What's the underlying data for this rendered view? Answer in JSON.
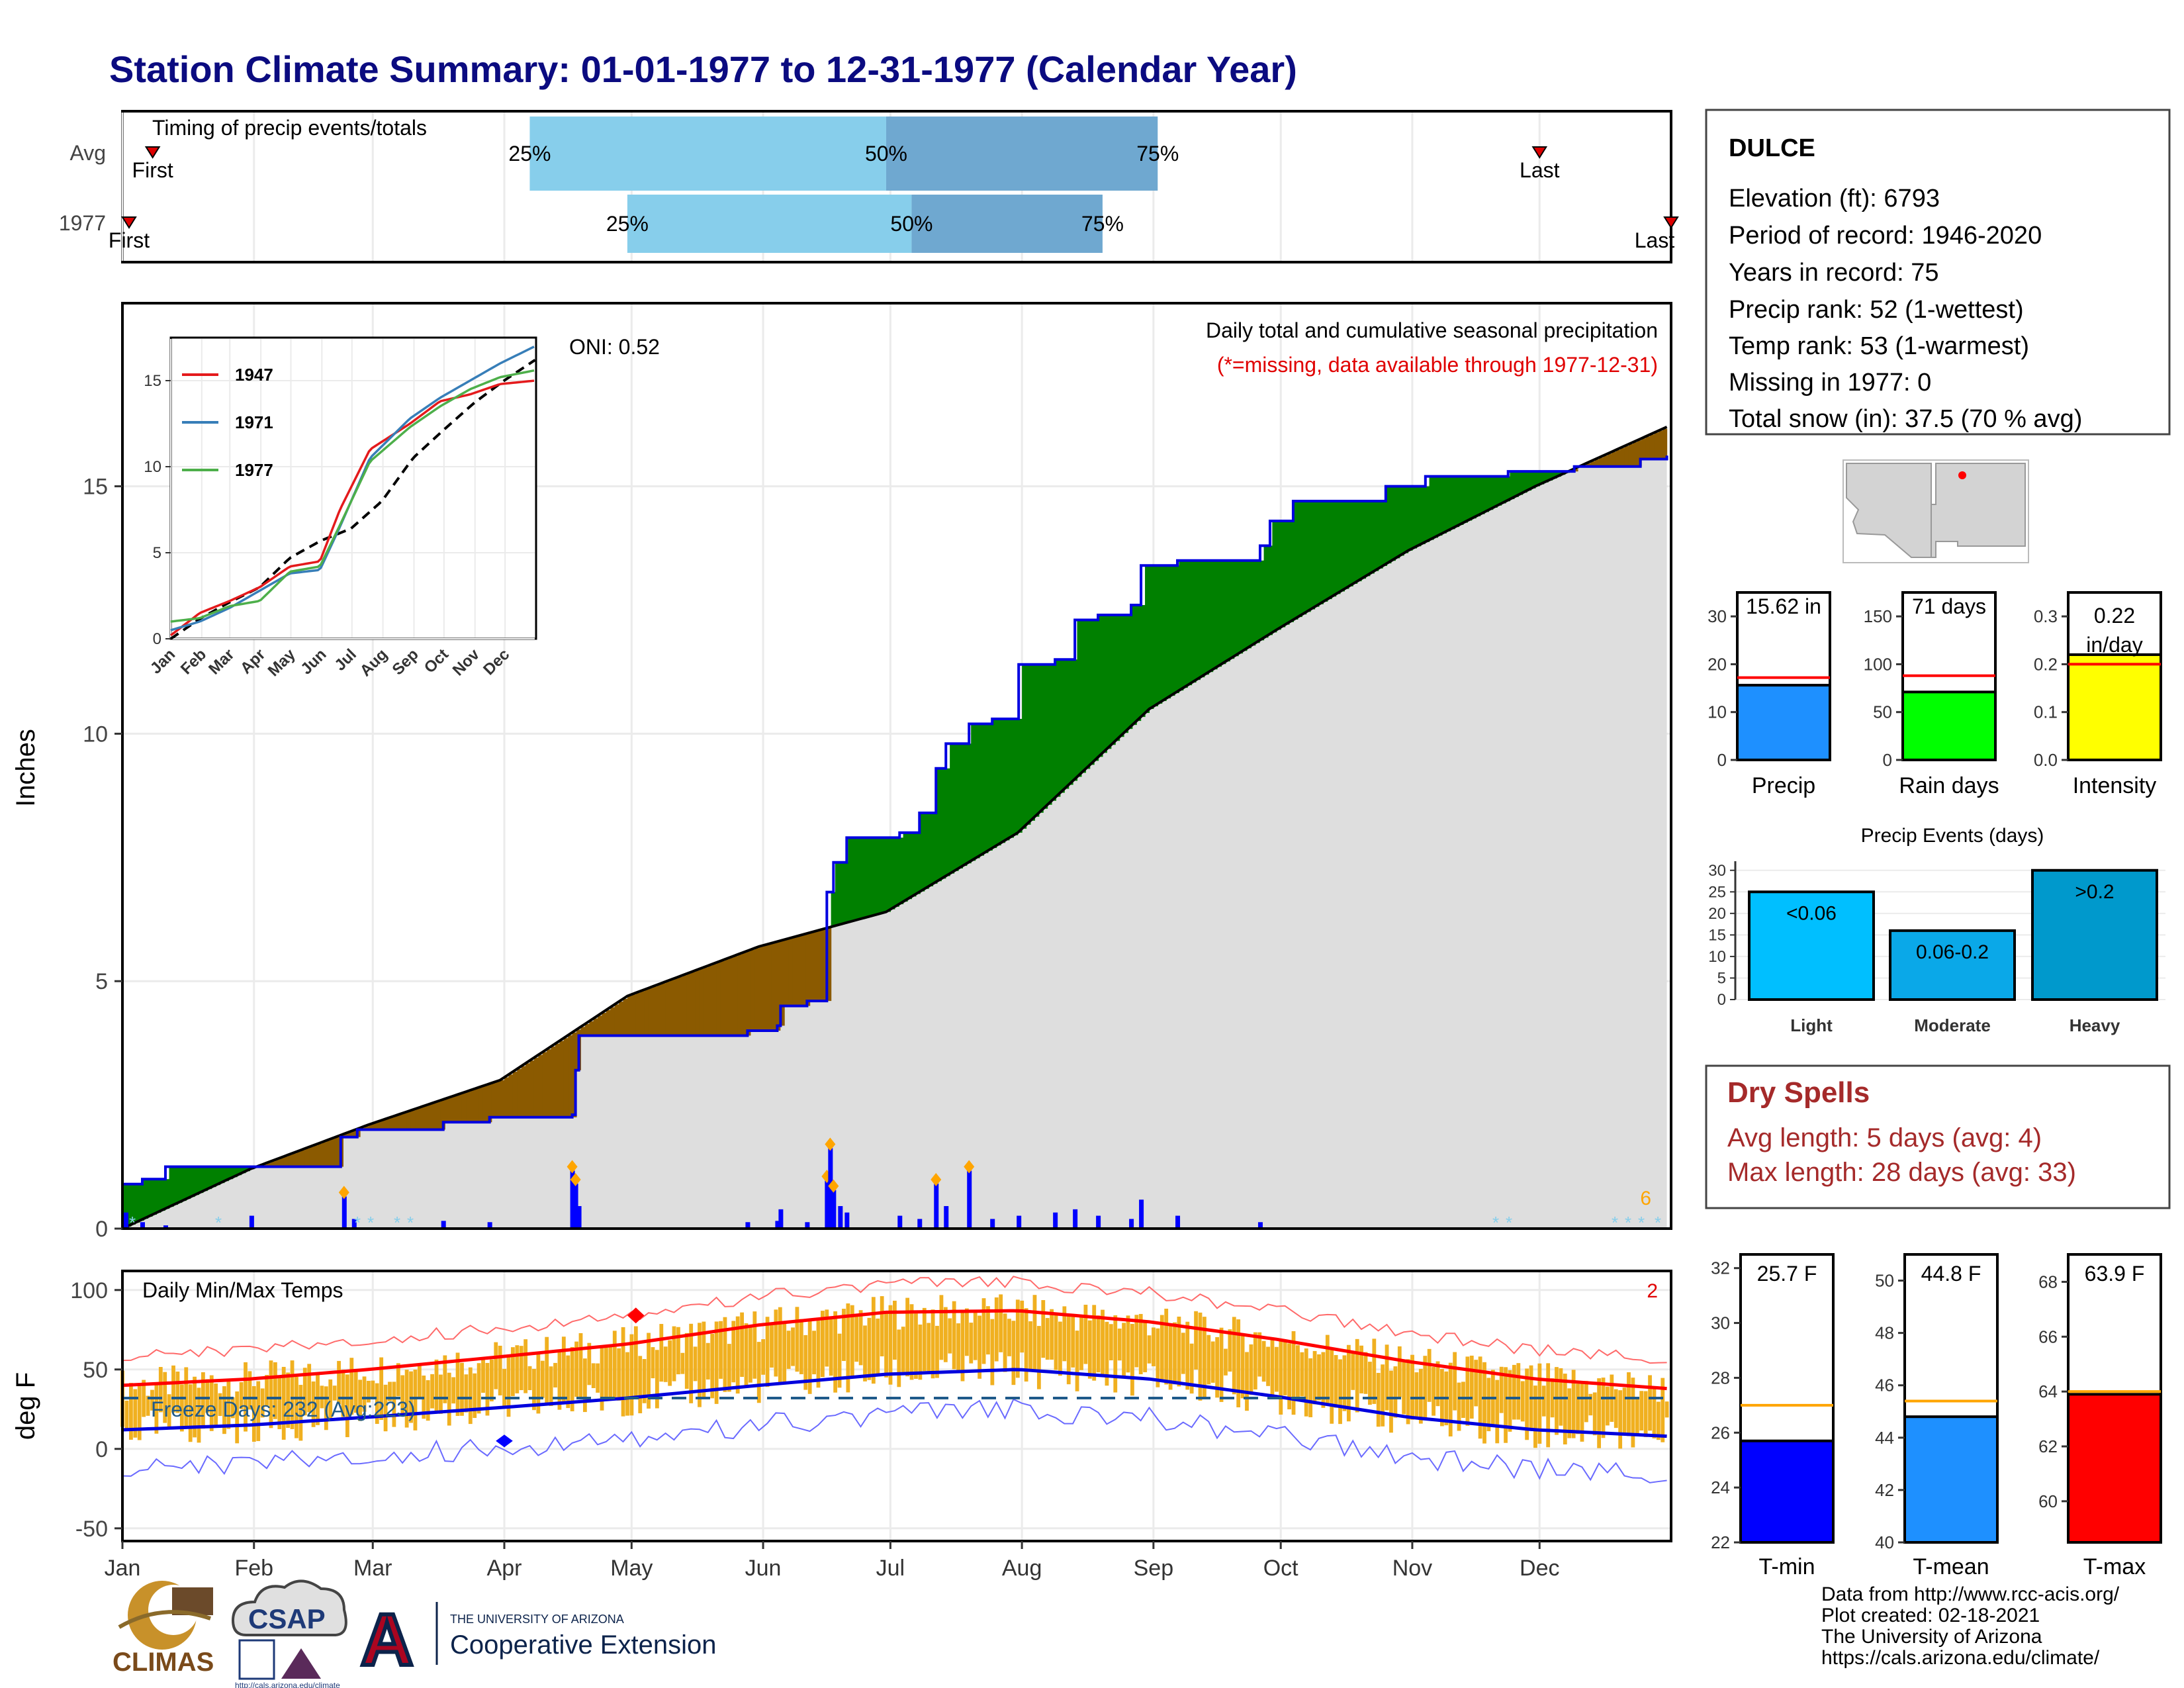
{
  "title": "Station Climate Summary: 01-01-1977 to 12-31-1977 (Calendar Year)",
  "timing": {
    "label": "Timing of precip events/totals",
    "rows": [
      {
        "name": "Avg",
        "first_label": "First",
        "last_label": "Last",
        "q25": "25%",
        "q50": "50%",
        "q75": "75%",
        "q25_day": 97,
        "q50_day": 181,
        "q75_day": 245,
        "first_day": 5,
        "last_day": 335
      },
      {
        "name": "1977",
        "first_label": "First",
        "last_label": "Last",
        "q25": "25%",
        "q50": "50%",
        "q75": "75%",
        "q25_day": 120,
        "q50_day": 187,
        "q75_day": 232,
        "first_day": 1,
        "last_day": 366
      }
    ]
  },
  "precip_panel": {
    "ylabel": "Inches",
    "label": "Daily total and cumulative seasonal precipitation",
    "missing_note": "(*=missing, data available through 1977-12-31)",
    "oni": "ONI: 0.52",
    "count_note": "6",
    "yticks": [
      "0",
      "5",
      "10",
      "15"
    ]
  },
  "temp_panel": {
    "ylabel": "deg F",
    "label": "Daily Min/Max Temps",
    "count_note": "2",
    "freeze": "Freeze Days: 232 (Avg:223)",
    "yticks": [
      "-50",
      "0",
      "50",
      "100"
    ]
  },
  "months": [
    "Jan",
    "Feb",
    "Mar",
    "Apr",
    "May",
    "Jun",
    "Jul",
    "Aug",
    "Sep",
    "Oct",
    "Nov",
    "Dec"
  ],
  "inset": {
    "legend": [
      "1947",
      "1971",
      "1977"
    ],
    "colors": [
      "#e41a1c",
      "#377eb8",
      "#4daf4a"
    ],
    "yticks": [
      "0",
      "5",
      "10",
      "15"
    ],
    "months": [
      "Jan",
      "Feb",
      "Mar",
      "Apr",
      "May",
      "Jun",
      "Jul",
      "Aug",
      "Sep",
      "Oct",
      "Nov",
      "Dec"
    ]
  },
  "station": {
    "name": "DULCE",
    "lines": [
      "Elevation (ft): 6793",
      "Period of record: 1946-2020",
      "Years in record: 75",
      "Precip rank: 52 (1-wettest)",
      "Temp rank: 53 (1-warmest)",
      "Missing in 1977: 0",
      "Total snow (in): 37.5 (70 % avg)"
    ]
  },
  "summary_bars": [
    {
      "label": "Precip",
      "value_label": "15.62 in",
      "value": 15.62,
      "avg": 17.2,
      "ymax": 35,
      "ticks": [
        "0",
        "10",
        "20",
        "30"
      ],
      "tickvals": [
        0,
        10,
        20,
        30
      ],
      "color": "#1e90ff"
    },
    {
      "label": "Rain days",
      "value_label": "71 days",
      "value": 71,
      "avg": 88,
      "ymax": 175,
      "ticks": [
        "0",
        "50",
        "100",
        "150"
      ],
      "tickvals": [
        0,
        50,
        100,
        150
      ],
      "color": "#00ff00"
    },
    {
      "label": "Intensity",
      "value_label": "0.22\nin/day",
      "value_line1": "0.22",
      "value_line2": "in/day",
      "value": 0.22,
      "avg": 0.2,
      "ymax": 0.35,
      "ticks": [
        "0.0",
        "0.1",
        "0.2",
        "0.3"
      ],
      "tickvals": [
        0,
        0.1,
        0.2,
        0.3
      ],
      "color": "#ffff00"
    }
  ],
  "events": {
    "title": "Precip Events (days)",
    "categories": [
      "Light",
      "Moderate",
      "Heavy"
    ],
    "labels": [
      "<0.06",
      "0.06-0.2",
      ">0.2"
    ],
    "values": [
      25,
      16,
      30
    ],
    "colors": [
      "#00bfff",
      "#0aa8e8",
      "#0099cc"
    ],
    "yticks": [
      "0",
      "5",
      "10",
      "15",
      "20",
      "25",
      "30"
    ]
  },
  "dry_spells": {
    "title": "Dry Spells",
    "lines": [
      "Avg length: 5 days (avg: 4)",
      "Max length: 28 days (avg: 33)"
    ]
  },
  "temp_bars": [
    {
      "label": "T-min",
      "value_label": "25.7 F",
      "value": 25.7,
      "avg": 27.0,
      "ymin": 22,
      "ymax": 32.5,
      "ticks": [
        "22",
        "24",
        "26",
        "28",
        "30",
        "32"
      ],
      "tickvals": [
        22,
        24,
        26,
        28,
        30,
        32
      ],
      "color": "#0000ff"
    },
    {
      "label": "T-mean",
      "value_label": "44.8 F",
      "value": 44.8,
      "avg": 45.4,
      "ymin": 40,
      "ymax": 51,
      "ticks": [
        "40",
        "42",
        "44",
        "46",
        "48",
        "50"
      ],
      "tickvals": [
        40,
        42,
        44,
        46,
        48,
        50
      ],
      "color": "#1e90ff"
    },
    {
      "label": "T-max",
      "value_label": "63.9 F",
      "value": 63.9,
      "avg": 64.0,
      "ymin": 58.5,
      "ymax": 69,
      "ticks": [
        "60",
        "62",
        "64",
        "66",
        "68"
      ],
      "tickvals": [
        60,
        62,
        64,
        66,
        68
      ],
      "color": "#ff0000"
    }
  ],
  "footer": {
    "lines": [
      "Data from http://www.rcc-acis.org/",
      "Plot created: 02-18-2021",
      "The University of Arizona",
      "https://cals.arizona.edu/climate/"
    ],
    "climas": "CLIMAS",
    "csap": "CSAP",
    "csap_url": "http://cals.arizona.edu/climate",
    "ua_small": "THE UNIVERSITY OF ARIZONA",
    "ua_big": "Cooperative Extension",
    "ua_letter": "A"
  },
  "chart_data": {
    "type": "area",
    "x_unit": "day of year 1977",
    "cumulative_1977_points": [
      [
        1,
        0.9
      ],
      [
        7,
        1.0
      ],
      [
        14,
        1.25
      ],
      [
        40,
        1.25
      ],
      [
        67,
        1.85
      ],
      [
        72,
        2.0
      ],
      [
        98,
        2.15
      ],
      [
        112,
        2.25
      ],
      [
        137,
        2.3
      ],
      [
        138,
        3.2
      ],
      [
        139,
        3.9
      ],
      [
        190,
        4.0
      ],
      [
        199,
        4.1
      ],
      [
        200,
        4.5
      ],
      [
        208,
        4.6
      ],
      [
        214,
        6.8
      ],
      [
        216,
        7.4
      ],
      [
        220,
        7.9
      ],
      [
        236,
        8.0
      ],
      [
        242,
        8.4
      ],
      [
        247,
        9.3
      ],
      [
        250,
        9.8
      ],
      [
        257,
        10.2
      ],
      [
        264,
        10.3
      ],
      [
        272,
        11.4
      ],
      [
        283,
        11.5
      ],
      [
        289,
        12.3
      ],
      [
        296,
        12.4
      ],
      [
        306,
        12.6
      ],
      [
        309,
        13.4
      ],
      [
        320,
        13.5
      ],
      [
        345,
        13.8
      ],
      [
        348,
        14.3
      ],
      [
        355,
        14.7
      ],
      [
        383,
        15.0
      ],
      [
        395,
        15.2
      ],
      [
        420,
        15.3
      ],
      [
        440,
        15.4
      ],
      [
        460,
        15.55
      ],
      [
        468,
        15.62
      ]
    ],
    "cumulative_avg_points": [
      [
        1,
        0.0
      ],
      [
        31,
        1.2
      ],
      [
        59,
        2.1
      ],
      [
        90,
        3.0
      ],
      [
        120,
        4.7
      ],
      [
        151,
        5.7
      ],
      [
        181,
        6.4
      ],
      [
        212,
        8.0
      ],
      [
        243,
        10.5
      ],
      [
        273,
        12.1
      ],
      [
        304,
        13.7
      ],
      [
        334,
        15.0
      ],
      [
        365,
        16.2
      ]
    ],
    "daily_points": [
      [
        2,
        0.25
      ],
      [
        7,
        0.1
      ],
      [
        14,
        0.05
      ],
      [
        40,
        0.2
      ],
      [
        68,
        0.5
      ],
      [
        71,
        0.15
      ],
      [
        98,
        0.12
      ],
      [
        112,
        0.1
      ],
      [
        137,
        0.9
      ],
      [
        138,
        0.7
      ],
      [
        139,
        0.35
      ],
      [
        190,
        0.1
      ],
      [
        199,
        0.12
      ],
      [
        200,
        0.3
      ],
      [
        208,
        0.1
      ],
      [
        214,
        0.75
      ],
      [
        215,
        1.25
      ],
      [
        216,
        0.6
      ],
      [
        218,
        0.35
      ],
      [
        220,
        0.25
      ],
      [
        236,
        0.2
      ],
      [
        242,
        0.15
      ],
      [
        247,
        0.7
      ],
      [
        250,
        0.35
      ],
      [
        257,
        0.9
      ],
      [
        264,
        0.15
      ],
      [
        272,
        0.2
      ],
      [
        283,
        0.25
      ],
      [
        289,
        0.3
      ],
      [
        296,
        0.2
      ],
      [
        306,
        0.15
      ],
      [
        309,
        0.45
      ],
      [
        320,
        0.2
      ],
      [
        345,
        0.1
      ]
    ],
    "temp_avg_max": [
      [
        1,
        40
      ],
      [
        31,
        44
      ],
      [
        59,
        50
      ],
      [
        90,
        58
      ],
      [
        120,
        66
      ],
      [
        151,
        78
      ],
      [
        181,
        86
      ],
      [
        212,
        87
      ],
      [
        243,
        80
      ],
      [
        273,
        69
      ],
      [
        304,
        55
      ],
      [
        334,
        44
      ],
      [
        365,
        38
      ]
    ],
    "temp_avg_min": [
      [
        1,
        12
      ],
      [
        31,
        15
      ],
      [
        59,
        20
      ],
      [
        90,
        26
      ],
      [
        120,
        32
      ],
      [
        151,
        40
      ],
      [
        181,
        47
      ],
      [
        212,
        50
      ],
      [
        243,
        44
      ],
      [
        273,
        33
      ],
      [
        304,
        20
      ],
      [
        334,
        12
      ],
      [
        365,
        8
      ]
    ],
    "freeze_line": 32,
    "inset_series": [
      {
        "name": "1947",
        "points": [
          [
            1,
            0.2
          ],
          [
            30,
            1.5
          ],
          [
            60,
            2.2
          ],
          [
            90,
            3.0
          ],
          [
            120,
            4.2
          ],
          [
            150,
            4.5
          ],
          [
            170,
            7.5
          ],
          [
            200,
            11.0
          ],
          [
            240,
            12.5
          ],
          [
            270,
            13.8
          ],
          [
            300,
            14.2
          ],
          [
            330,
            14.8
          ],
          [
            365,
            15.0
          ]
        ]
      },
      {
        "name": "1971",
        "points": [
          [
            1,
            0.5
          ],
          [
            30,
            1.0
          ],
          [
            60,
            1.8
          ],
          [
            90,
            2.8
          ],
          [
            120,
            3.8
          ],
          [
            150,
            4.0
          ],
          [
            170,
            6.5
          ],
          [
            200,
            10.5
          ],
          [
            240,
            12.8
          ],
          [
            270,
            14.0
          ],
          [
            300,
            15.0
          ],
          [
            330,
            16.0
          ],
          [
            365,
            17.0
          ]
        ]
      },
      {
        "name": "1977",
        "points": [
          [
            1,
            1.0
          ],
          [
            30,
            1.2
          ],
          [
            60,
            1.9
          ],
          [
            90,
            2.2
          ],
          [
            120,
            3.9
          ],
          [
            150,
            4.2
          ],
          [
            170,
            6.6
          ],
          [
            200,
            10.3
          ],
          [
            240,
            12.3
          ],
          [
            270,
            13.5
          ],
          [
            300,
            14.5
          ],
          [
            330,
            15.2
          ],
          [
            365,
            15.6
          ]
        ]
      }
    ]
  }
}
